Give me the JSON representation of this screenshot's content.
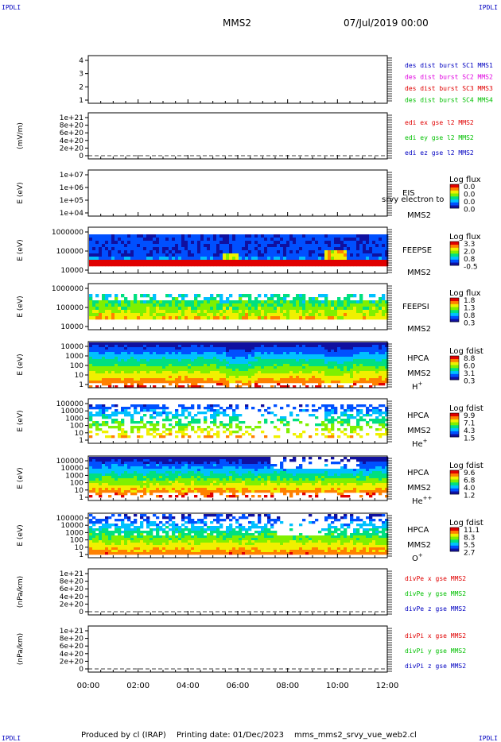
{
  "header": {
    "corner_left_top": "IPDLI",
    "corner_right_top": "IPDLI",
    "corner_left_bottom": "IPDLI",
    "corner_right_bottom": "IPDLI",
    "spacecraft": "MMS2",
    "date": "07/Jul/2019 00:00"
  },
  "footer": {
    "produced_by": "Produced by cl (IRAP)",
    "printing_date": "Printing date: 01/Dec/2023",
    "filename": "mms_mms2_srvy_vue_web2.cl"
  },
  "colors": {
    "red": "#e00000",
    "green": "#00c000",
    "blue": "#0000c0",
    "magenta": "#e000e0",
    "cbar": [
      "#1010a0",
      "#0050ff",
      "#00c0ff",
      "#00e080",
      "#80f000",
      "#f0f000",
      "#ff8000",
      "#e00000"
    ]
  },
  "chart_data": [
    {
      "id": "p1",
      "type": "line",
      "yticks": [
        "1",
        "2",
        "3",
        "4"
      ],
      "legend": [
        {
          "text": "des dist burst SC1 MMS1",
          "color": "#0000c0"
        },
        {
          "text": "des dist burst SC2 MMS2",
          "color": "#e000e0"
        },
        {
          "text": "des dist burst SC3 MMS3",
          "color": "#e00000"
        },
        {
          "text": "des dist burst SC4 MMS4",
          "color": "#00c000"
        }
      ]
    },
    {
      "id": "p2",
      "type": "line",
      "ylabel": "(mV/m)",
      "yticks": [
        "0",
        "2e+20",
        "4e+20",
        "6e+20",
        "8e+20",
        "1e+21"
      ],
      "legend": [
        {
          "text": "edi ex gse l2 MMS2",
          "color": "#e00000"
        },
        {
          "text": "edi ey gse l2 MMS2",
          "color": "#00c000"
        },
        {
          "text": "edi ez gse l2 MMS2",
          "color": "#0000c0"
        }
      ]
    },
    {
      "id": "p3",
      "type": "heatmap",
      "ylabel": "E (eV)",
      "yticks": [
        "1e+04",
        "1e+05",
        "1e+06",
        "1e+07"
      ],
      "instrument": "EIS",
      "sc": "MMS2",
      "overlay_text": "srvy electron to",
      "cbar_title": "Log flux",
      "cbar_ticks": [
        "0.0",
        "0.0",
        "0.0",
        "0.0"
      ]
    },
    {
      "id": "p4",
      "type": "heatmap",
      "ylabel": "E (eV)",
      "yticks": [
        "10000",
        "100000",
        "1000000"
      ],
      "instrument": "FEEPSE",
      "sc": "MMS2",
      "cbar_title": "Log flux",
      "cbar_ticks": [
        "3.3",
        "2.0",
        "0.8",
        "-0.5"
      ]
    },
    {
      "id": "p5",
      "type": "heatmap",
      "ylabel": "E (eV)",
      "yticks": [
        "10000",
        "100000",
        "1000000"
      ],
      "instrument": "FEEPSI",
      "sc": "MMS2",
      "cbar_title": "Log flux",
      "cbar_ticks": [
        "1.8",
        "1.3",
        "0.8",
        "0.3"
      ]
    },
    {
      "id": "p6",
      "type": "heatmap",
      "ylabel": "E (eV)",
      "yticks": [
        "1",
        "10",
        "100",
        "1000",
        "10000"
      ],
      "instrument": "HPCA",
      "sc": "MMS2",
      "species": "H",
      "species_sup": "+",
      "cbar_title": "Log fdist",
      "cbar_ticks": [
        "8.8",
        "6.0",
        "3.1",
        "0.3"
      ]
    },
    {
      "id": "p7",
      "type": "heatmap",
      "ylabel": "E (eV)",
      "yticks": [
        "1",
        "10",
        "100",
        "1000",
        "10000",
        "100000"
      ],
      "instrument": "HPCA",
      "sc": "MMS2",
      "species": "He",
      "species_sup": "+",
      "cbar_title": "Log fdist",
      "cbar_ticks": [
        "9.9",
        "7.1",
        "4.3",
        "1.5"
      ]
    },
    {
      "id": "p8",
      "type": "heatmap",
      "ylabel": "E (eV)",
      "yticks": [
        "1",
        "10",
        "100",
        "1000",
        "10000",
        "100000"
      ],
      "instrument": "HPCA",
      "sc": "MMS2",
      "species": "He",
      "species_sup": "++",
      "cbar_title": "Log fdist",
      "cbar_ticks": [
        "9.6",
        "6.8",
        "4.0",
        "1.2"
      ]
    },
    {
      "id": "p9",
      "type": "heatmap",
      "ylabel": "E (eV)",
      "yticks": [
        "1",
        "10",
        "100",
        "1000",
        "10000",
        "100000"
      ],
      "instrument": "HPCA",
      "sc": "MMS2",
      "species": "O",
      "species_sup": "+",
      "cbar_title": "Log fdist",
      "cbar_ticks": [
        "11.1",
        "8.3",
        "5.5",
        "2.7"
      ]
    },
    {
      "id": "p10",
      "type": "line",
      "ylabel": "(nPa/km)",
      "yticks": [
        "0",
        "2e+20",
        "4e+20",
        "6e+20",
        "8e+20",
        "1e+21"
      ],
      "legend": [
        {
          "text": "divPe x gse MMS2",
          "color": "#e00000"
        },
        {
          "text": "divPe y gse MMS2",
          "color": "#00c000"
        },
        {
          "text": "divPe z gse MMS2",
          "color": "#0000c0"
        }
      ]
    },
    {
      "id": "p11",
      "type": "line",
      "ylabel": "(nPa/km)",
      "yticks": [
        "0",
        "2e+20",
        "4e+20",
        "6e+20",
        "8e+20",
        "1e+21"
      ],
      "legend": [
        {
          "text": "divPi x gse MMS2",
          "color": "#e00000"
        },
        {
          "text": "divPi y gse MMS2",
          "color": "#00c000"
        },
        {
          "text": "divPi z gse MMS2",
          "color": "#0000c0"
        }
      ]
    }
  ],
  "xaxis": {
    "ticks": [
      "00:00",
      "02:00",
      "04:00",
      "06:00",
      "08:00",
      "10:00",
      "12:00"
    ]
  }
}
